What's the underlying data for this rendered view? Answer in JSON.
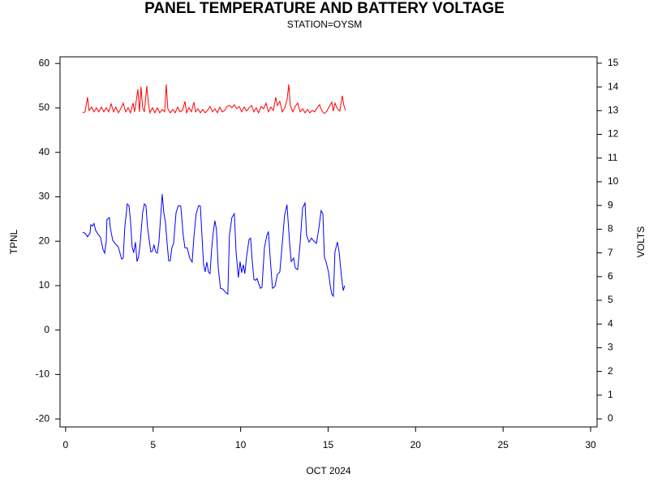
{
  "chart_data": {
    "type": "line",
    "title": "PANEL TEMPERATURE AND BATTERY VOLTAGE",
    "subtitle": "STATION=OYSM",
    "xlabel": "OCT 2024",
    "ylabel": "TPNL",
    "y2label": "VOLTS",
    "xlim": [
      -0.32,
      30.37
    ],
    "xticks": [
      0,
      5,
      10,
      15,
      20,
      25,
      30
    ],
    "ylim": [
      -21.8,
      61.5
    ],
    "yticks": [
      -20,
      -10,
      0,
      10,
      20,
      30,
      40,
      50,
      60
    ],
    "y2lim": [
      -0.34,
      15.27
    ],
    "y2ticks": [
      0,
      1,
      2,
      3,
      4,
      5,
      6,
      7,
      8,
      9,
      10,
      11,
      12,
      13,
      14,
      15
    ],
    "grid": false,
    "series": [
      {
        "color": "#0000ff",
        "axis": "y",
        "x": [
          0.97,
          1.11,
          1.25,
          1.39,
          1.44,
          1.53,
          1.62,
          1.72,
          1.85,
          1.99,
          2.13,
          2.23,
          2.32,
          2.36,
          2.5,
          2.55,
          2.69,
          2.87,
          3.01,
          3.2,
          3.29,
          3.38,
          3.52,
          3.62,
          3.71,
          3.8,
          3.89,
          3.99,
          4.08,
          4.17,
          4.27,
          4.4,
          4.5,
          4.59,
          4.68,
          4.78,
          4.87,
          4.96,
          5.05,
          5.15,
          5.24,
          5.33,
          5.42,
          5.52,
          5.61,
          5.7,
          5.8,
          5.89,
          5.98,
          6.07,
          6.17,
          6.31,
          6.44,
          6.58,
          6.72,
          6.82,
          6.95,
          7.09,
          7.23,
          7.33,
          7.46,
          7.6,
          7.7,
          7.79,
          7.88,
          7.97,
          8.07,
          8.16,
          8.25,
          8.34,
          8.44,
          8.53,
          8.62,
          8.72,
          8.85,
          8.99,
          9.13,
          9.27,
          9.36,
          9.5,
          9.64,
          9.74,
          9.87,
          9.97,
          10.06,
          10.15,
          10.24,
          10.34,
          10.48,
          10.57,
          10.66,
          10.76,
          10.85,
          10.94,
          11.03,
          11.13,
          11.22,
          11.36,
          11.5,
          11.59,
          11.68,
          11.82,
          11.96,
          12.1,
          12.24,
          12.38,
          12.51,
          12.65,
          12.8,
          12.89,
          13.03,
          13.12,
          13.26,
          13.4,
          13.54,
          13.68,
          13.77,
          13.91,
          14.05,
          14.19,
          14.33,
          14.46,
          14.6,
          14.7,
          14.79,
          14.88,
          15.02,
          15.11,
          15.21,
          15.3,
          15.39,
          15.53,
          15.63,
          15.76,
          15.86,
          15.95
        ],
        "values": [
          22,
          21.8,
          21,
          21.8,
          23.7,
          23.4,
          24,
          22.4,
          21.6,
          20.9,
          18.2,
          17.3,
          20,
          24.9,
          25.3,
          23.1,
          20.2,
          19.3,
          18.7,
          16,
          16.2,
          23.1,
          28.4,
          28,
          24.4,
          18.7,
          17.4,
          19.8,
          15.4,
          16.5,
          20,
          26.4,
          28.4,
          28,
          23.1,
          20.2,
          17.6,
          17.8,
          19.1,
          17.6,
          17.3,
          19.8,
          24.9,
          30.6,
          26.4,
          24.4,
          19.5,
          15.6,
          15.6,
          18.5,
          19.5,
          26.4,
          28,
          27.9,
          21.3,
          18.5,
          18.5,
          16.2,
          15.3,
          20.9,
          26.2,
          28,
          27.9,
          21.3,
          14.9,
          13.1,
          15.3,
          13.1,
          12.7,
          18,
          22.2,
          24.6,
          22.6,
          14,
          9.4,
          9.2,
          8.5,
          8.1,
          21.3,
          25.3,
          26.2,
          17.6,
          11.8,
          15.4,
          12.9,
          14.7,
          12.7,
          16.5,
          20.4,
          20.7,
          15.8,
          11.4,
          11.2,
          11.6,
          10.5,
          9.4,
          9.6,
          18.5,
          21.3,
          22.2,
          16.7,
          9.4,
          9.8,
          12.5,
          13.1,
          19.5,
          25.8,
          28.2,
          19.6,
          15.4,
          16.2,
          14,
          13.6,
          19.5,
          27.5,
          28.6,
          21.3,
          19.8,
          20.7,
          20,
          19.5,
          22.6,
          26.9,
          26.2,
          16.3,
          15.4,
          13.1,
          10.3,
          8.1,
          7.6,
          17.6,
          19.8,
          17.6,
          12.1,
          8.9,
          10
        ]
      },
      {
        "color": "#ff0000",
        "axis": "y2",
        "x": [
          0.97,
          1.11,
          1.25,
          1.34,
          1.48,
          1.62,
          1.76,
          1.9,
          2.04,
          2.18,
          2.32,
          2.46,
          2.6,
          2.74,
          2.87,
          3.01,
          3.15,
          3.29,
          3.43,
          3.57,
          3.71,
          3.85,
          3.94,
          4.03,
          4.13,
          4.22,
          4.31,
          4.4,
          4.5,
          4.64,
          4.73,
          4.82,
          4.96,
          5.1,
          5.24,
          5.38,
          5.52,
          5.66,
          5.75,
          5.84,
          5.98,
          6.12,
          6.26,
          6.4,
          6.54,
          6.68,
          6.82,
          6.91,
          7.05,
          7.19,
          7.33,
          7.42,
          7.56,
          7.7,
          7.84,
          7.97,
          8.11,
          8.25,
          8.39,
          8.53,
          8.67,
          8.81,
          8.95,
          9.09,
          9.23,
          9.36,
          9.5,
          9.64,
          9.78,
          9.92,
          10.06,
          10.2,
          10.34,
          10.48,
          10.62,
          10.76,
          10.89,
          11.03,
          11.17,
          11.31,
          11.45,
          11.59,
          11.73,
          11.87,
          12.01,
          12.1,
          12.24,
          12.38,
          12.52,
          12.66,
          12.75,
          12.84,
          12.98,
          13.12,
          13.26,
          13.4,
          13.54,
          13.68,
          13.82,
          13.95,
          14.09,
          14.23,
          14.37,
          14.51,
          14.65,
          14.79,
          14.93,
          15.07,
          15.21,
          15.3,
          15.39,
          15.53,
          15.67,
          15.81,
          15.9,
          15.99
        ],
        "values": [
          12.91,
          12.95,
          13.56,
          13.01,
          13.15,
          12.95,
          13.12,
          12.95,
          13.15,
          12.95,
          13.12,
          12.95,
          13.29,
          12.95,
          13.15,
          12.91,
          13.08,
          13.32,
          12.95,
          13.12,
          12.91,
          13.32,
          12.95,
          13.39,
          13.9,
          12.95,
          14.01,
          13.12,
          12.95,
          14.04,
          13.29,
          12.91,
          13.12,
          12.91,
          13.12,
          12.91,
          13.05,
          12.95,
          14.11,
          13.08,
          12.91,
          13.05,
          12.91,
          13.15,
          12.95,
          13.01,
          13.39,
          12.91,
          13.12,
          12.95,
          13.36,
          12.95,
          13.08,
          12.91,
          13.05,
          12.91,
          13.01,
          13.18,
          12.95,
          13.08,
          12.91,
          13.15,
          12.95,
          13.01,
          13.18,
          13.22,
          13.12,
          13.25,
          13.08,
          13.18,
          12.95,
          13.15,
          12.98,
          13.12,
          13.22,
          12.95,
          13.12,
          12.91,
          13.18,
          13.08,
          13.32,
          12.95,
          13.15,
          13.01,
          13.56,
          13.22,
          13.39,
          12.95,
          13.12,
          13.49,
          14.11,
          13.22,
          12.95,
          13.18,
          13.32,
          12.95,
          13.08,
          12.91,
          13.05,
          12.91,
          13.01,
          12.95,
          13.12,
          13.25,
          12.98,
          12.88,
          12.98,
          13.18,
          13.36,
          12.98,
          13.32,
          13.08,
          12.98,
          13.63,
          13.22,
          13.01
        ]
      }
    ]
  }
}
